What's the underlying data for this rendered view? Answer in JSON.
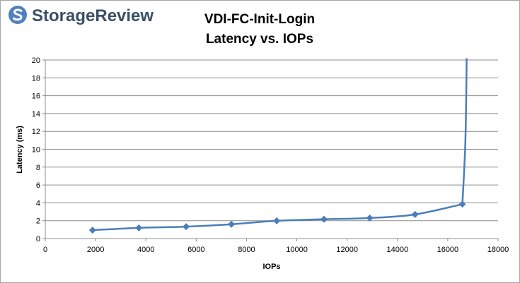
{
  "logo": {
    "text": "StorageReview"
  },
  "colors": {
    "series": "#4a7ebb",
    "grid": "#8c8c8c",
    "logo_circle": "#4f81bd",
    "logo_text": "#3a4f66"
  },
  "chart_data": {
    "type": "line",
    "title": [
      "VDI-FC-Init-Login",
      "Latency vs. IOPs"
    ],
    "xlabel": "IOPs",
    "ylabel": "Latency (ms)",
    "xlim": [
      0,
      18000
    ],
    "ylim": [
      0,
      20
    ],
    "xticks": [
      0,
      2000,
      4000,
      6000,
      8000,
      10000,
      12000,
      14000,
      16000,
      18000
    ],
    "yticks": [
      0,
      2,
      4,
      6,
      8,
      10,
      12,
      14,
      16,
      18,
      20
    ],
    "grid": "horizontal",
    "legend": "none",
    "series": [
      {
        "marker": "diamond",
        "x": [
          1880,
          3720,
          5600,
          7400,
          9200,
          11080,
          12900,
          14700,
          16580
        ],
        "y": [
          0.94,
          1.2,
          1.33,
          1.6,
          1.99,
          2.16,
          2.3,
          2.7,
          3.85
        ],
        "tail": {
          "x": [
            16750
          ],
          "y": [
            20.2
          ]
        }
      }
    ]
  }
}
